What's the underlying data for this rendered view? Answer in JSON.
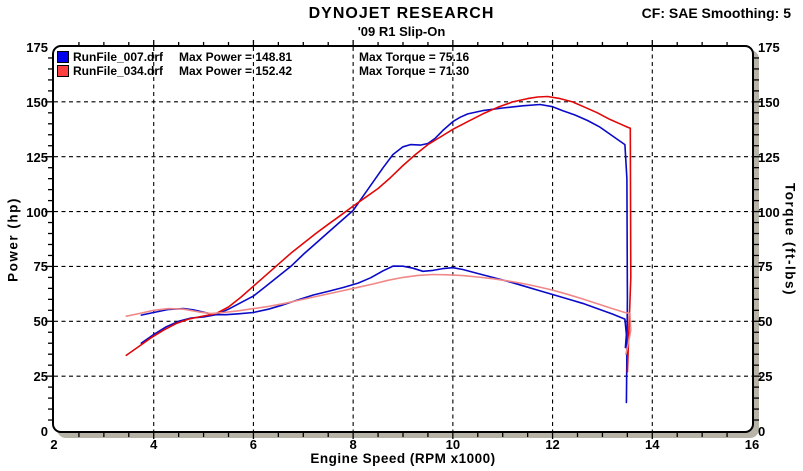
{
  "header": {
    "title": "DYNOJET RESEARCH",
    "subtitle": "'09 R1 Slip-On",
    "correction": "CF: SAE  Smoothing: 5"
  },
  "legend": [
    {
      "file": "RunFile_007.drf",
      "max_power": "Max Power = 148.81",
      "max_torque": "Max Torque = 75.16",
      "color": "#0000ee"
    },
    {
      "file": "RunFile_034.drf",
      "max_power": "Max Power = 152.42",
      "max_torque": "Max Torque = 71.30",
      "color": "#ff4040"
    }
  ],
  "axes": {
    "x": {
      "label": "Engine Speed (RPM x1000)",
      "min": 2,
      "max": 16,
      "major": 2,
      "minor": 0.5,
      "tick_labels": [
        "2",
        "4",
        "6",
        "8",
        "10",
        "12",
        "14",
        "16"
      ]
    },
    "y_left": {
      "label": "Power (hp)",
      "min": 0,
      "max": 175,
      "major": 25,
      "minor": 5,
      "tick_labels": [
        "0",
        "25",
        "50",
        "75",
        "100",
        "125",
        "150",
        "175"
      ]
    },
    "y_right": {
      "label": "Torque (ft-lbs)",
      "min": 0,
      "max": 175,
      "major": 25,
      "minor": 5,
      "tick_labels": [
        "0",
        "25",
        "50",
        "75",
        "100",
        "125",
        "150",
        "175"
      ]
    }
  },
  "colors": {
    "background": "#ffffff",
    "frame": "#000000",
    "frame_shadow": "#b7b4a7",
    "grid": "#000000",
    "blue_run": "#0a0ac8",
    "red_run_power": "#e00808",
    "red_run_torque": "#f08888"
  },
  "chart_data": {
    "type": "line",
    "title": "DYNOJET RESEARCH",
    "subtitle": "'09 R1 Slip-On",
    "xlabel": "Engine Speed (RPM x1000)",
    "ylabel_left": "Power (hp)",
    "ylabel_right": "Torque (ft-lbs)",
    "xlim": [
      2,
      16
    ],
    "ylim": [
      0,
      175
    ],
    "grid": "dashed-major",
    "grid_x": [
      4,
      6,
      8,
      10,
      12,
      14
    ],
    "grid_y": [
      25,
      50,
      75,
      100,
      125,
      150
    ],
    "legend_position": "top-left",
    "series": [
      {
        "id": "runfile-007-power",
        "name": "RunFile_007.drf Power (hp)",
        "color": "#0a0ac8",
        "axis": "left",
        "max": 148.81,
        "points": [
          [
            3.75,
            40
          ],
          [
            4.0,
            44
          ],
          [
            4.25,
            47.5
          ],
          [
            4.5,
            50
          ],
          [
            4.75,
            51.5
          ],
          [
            5.0,
            52
          ],
          [
            5.25,
            53
          ],
          [
            5.5,
            55.5
          ],
          [
            5.75,
            58.5
          ],
          [
            6.0,
            61.5
          ],
          [
            6.25,
            66
          ],
          [
            6.5,
            70.5
          ],
          [
            6.75,
            75
          ],
          [
            7.0,
            80.5
          ],
          [
            7.25,
            85.5
          ],
          [
            7.5,
            90.5
          ],
          [
            7.75,
            95.5
          ],
          [
            8.0,
            100.5
          ],
          [
            8.2,
            107
          ],
          [
            8.4,
            113.5
          ],
          [
            8.6,
            120
          ],
          [
            8.8,
            126
          ],
          [
            9.0,
            129.5
          ],
          [
            9.15,
            130.5
          ],
          [
            9.35,
            130.3
          ],
          [
            9.5,
            131
          ],
          [
            9.65,
            133.5
          ],
          [
            9.8,
            137
          ],
          [
            10.0,
            141
          ],
          [
            10.15,
            143
          ],
          [
            10.3,
            144.5
          ],
          [
            10.6,
            146
          ],
          [
            11.0,
            147.2
          ],
          [
            11.4,
            148.2
          ],
          [
            11.75,
            148.81
          ],
          [
            12.0,
            147.8
          ],
          [
            12.2,
            146
          ],
          [
            12.45,
            144
          ],
          [
            12.7,
            141.5
          ],
          [
            12.95,
            138.5
          ],
          [
            13.2,
            134.5
          ],
          [
            13.45,
            130.5
          ],
          [
            13.49,
            115
          ],
          [
            13.5,
            60
          ],
          [
            13.48,
            13
          ]
        ]
      },
      {
        "id": "runfile-007-torque",
        "name": "RunFile_007.drf Torque (ft-lbs)",
        "color": "#0a0ac8",
        "axis": "right",
        "max": 75.16,
        "points": [
          [
            3.75,
            52.8
          ],
          [
            4.0,
            54
          ],
          [
            4.3,
            55.4
          ],
          [
            4.6,
            55.8
          ],
          [
            4.8,
            55.2
          ],
          [
            5.0,
            54.2
          ],
          [
            5.2,
            53
          ],
          [
            5.45,
            53
          ],
          [
            5.7,
            53.4
          ],
          [
            6.0,
            54
          ],
          [
            6.3,
            55.5
          ],
          [
            6.6,
            57.5
          ],
          [
            6.9,
            59.8
          ],
          [
            7.2,
            62
          ],
          [
            7.5,
            63.6
          ],
          [
            7.8,
            65.4
          ],
          [
            8.1,
            67.4
          ],
          [
            8.35,
            69.8
          ],
          [
            8.6,
            73
          ],
          [
            8.8,
            75.16
          ],
          [
            9.0,
            75.1
          ],
          [
            9.2,
            74.2
          ],
          [
            9.4,
            72.8
          ],
          [
            9.6,
            73.2
          ],
          [
            9.8,
            74
          ],
          [
            10.0,
            74.4
          ],
          [
            10.2,
            73.6
          ],
          [
            10.5,
            71.8
          ],
          [
            10.8,
            70
          ],
          [
            11.1,
            68.2
          ],
          [
            11.4,
            66.2
          ],
          [
            11.7,
            64.2
          ],
          [
            12.0,
            62.2
          ],
          [
            12.3,
            60.2
          ],
          [
            12.6,
            58.2
          ],
          [
            12.9,
            55.8
          ],
          [
            13.2,
            53.3
          ],
          [
            13.45,
            51
          ],
          [
            13.48,
            44
          ],
          [
            13.46,
            38
          ]
        ]
      },
      {
        "id": "runfile-034-power",
        "name": "RunFile_034.drf Power (hp)",
        "color": "#e00808",
        "axis": "left",
        "max": 152.42,
        "points": [
          [
            3.45,
            34.5
          ],
          [
            3.7,
            38.5
          ],
          [
            3.95,
            42.5
          ],
          [
            4.2,
            46
          ],
          [
            4.45,
            49
          ],
          [
            4.7,
            51
          ],
          [
            4.95,
            52.2
          ],
          [
            5.25,
            53.5
          ],
          [
            5.5,
            56.5
          ],
          [
            5.75,
            61
          ],
          [
            6.0,
            66
          ],
          [
            6.25,
            71
          ],
          [
            6.5,
            76
          ],
          [
            6.75,
            81
          ],
          [
            7.0,
            85.5
          ],
          [
            7.25,
            90
          ],
          [
            7.5,
            94.2
          ],
          [
            7.75,
            98.3
          ],
          [
            8.0,
            102.5
          ],
          [
            8.25,
            106.5
          ],
          [
            8.5,
            110.5
          ],
          [
            8.75,
            115.5
          ],
          [
            9.0,
            121
          ],
          [
            9.25,
            126
          ],
          [
            9.5,
            130.5
          ],
          [
            9.75,
            134
          ],
          [
            10.0,
            137.5
          ],
          [
            10.3,
            141
          ],
          [
            10.6,
            144.5
          ],
          [
            10.9,
            147.5
          ],
          [
            11.2,
            150
          ],
          [
            11.5,
            151.5
          ],
          [
            11.7,
            152.2
          ],
          [
            11.9,
            152.42
          ],
          [
            12.15,
            151.5
          ],
          [
            12.4,
            150
          ],
          [
            12.65,
            147.5
          ],
          [
            12.9,
            145
          ],
          [
            13.15,
            142
          ],
          [
            13.35,
            140
          ],
          [
            13.5,
            138.5
          ],
          [
            13.56,
            138
          ],
          [
            13.57,
            70
          ],
          [
            13.5,
            27
          ]
        ]
      },
      {
        "id": "runfile-034-torque",
        "name": "RunFile_034.drf Torque (ft-lbs)",
        "color": "#f08888",
        "axis": "right",
        "max": 71.3,
        "points": [
          [
            3.45,
            52.3
          ],
          [
            3.7,
            53.5
          ],
          [
            4.0,
            55
          ],
          [
            4.3,
            55.8
          ],
          [
            4.6,
            55.5
          ],
          [
            4.9,
            54.3
          ],
          [
            5.15,
            53.5
          ],
          [
            5.4,
            54
          ],
          [
            5.7,
            54.8
          ],
          [
            6.0,
            55.8
          ],
          [
            6.3,
            56.8
          ],
          [
            6.6,
            58
          ],
          [
            6.9,
            59.5
          ],
          [
            7.2,
            61
          ],
          [
            7.5,
            62.5
          ],
          [
            7.8,
            64
          ],
          [
            8.1,
            65.5
          ],
          [
            8.4,
            67
          ],
          [
            8.7,
            68.7
          ],
          [
            9.0,
            70
          ],
          [
            9.3,
            70.9
          ],
          [
            9.6,
            71.3
          ],
          [
            9.9,
            71.2
          ],
          [
            10.2,
            70.8
          ],
          [
            10.5,
            70.2
          ],
          [
            10.8,
            69.4
          ],
          [
            11.1,
            68.4
          ],
          [
            11.4,
            67.2
          ],
          [
            11.7,
            65.8
          ],
          [
            12.0,
            64.2
          ],
          [
            12.3,
            62.3
          ],
          [
            12.6,
            60.2
          ],
          [
            12.9,
            58
          ],
          [
            13.2,
            55.8
          ],
          [
            13.45,
            54
          ],
          [
            13.55,
            53.6
          ],
          [
            13.57,
            46
          ],
          [
            13.5,
            38
          ],
          [
            13.47,
            35
          ]
        ]
      }
    ]
  }
}
